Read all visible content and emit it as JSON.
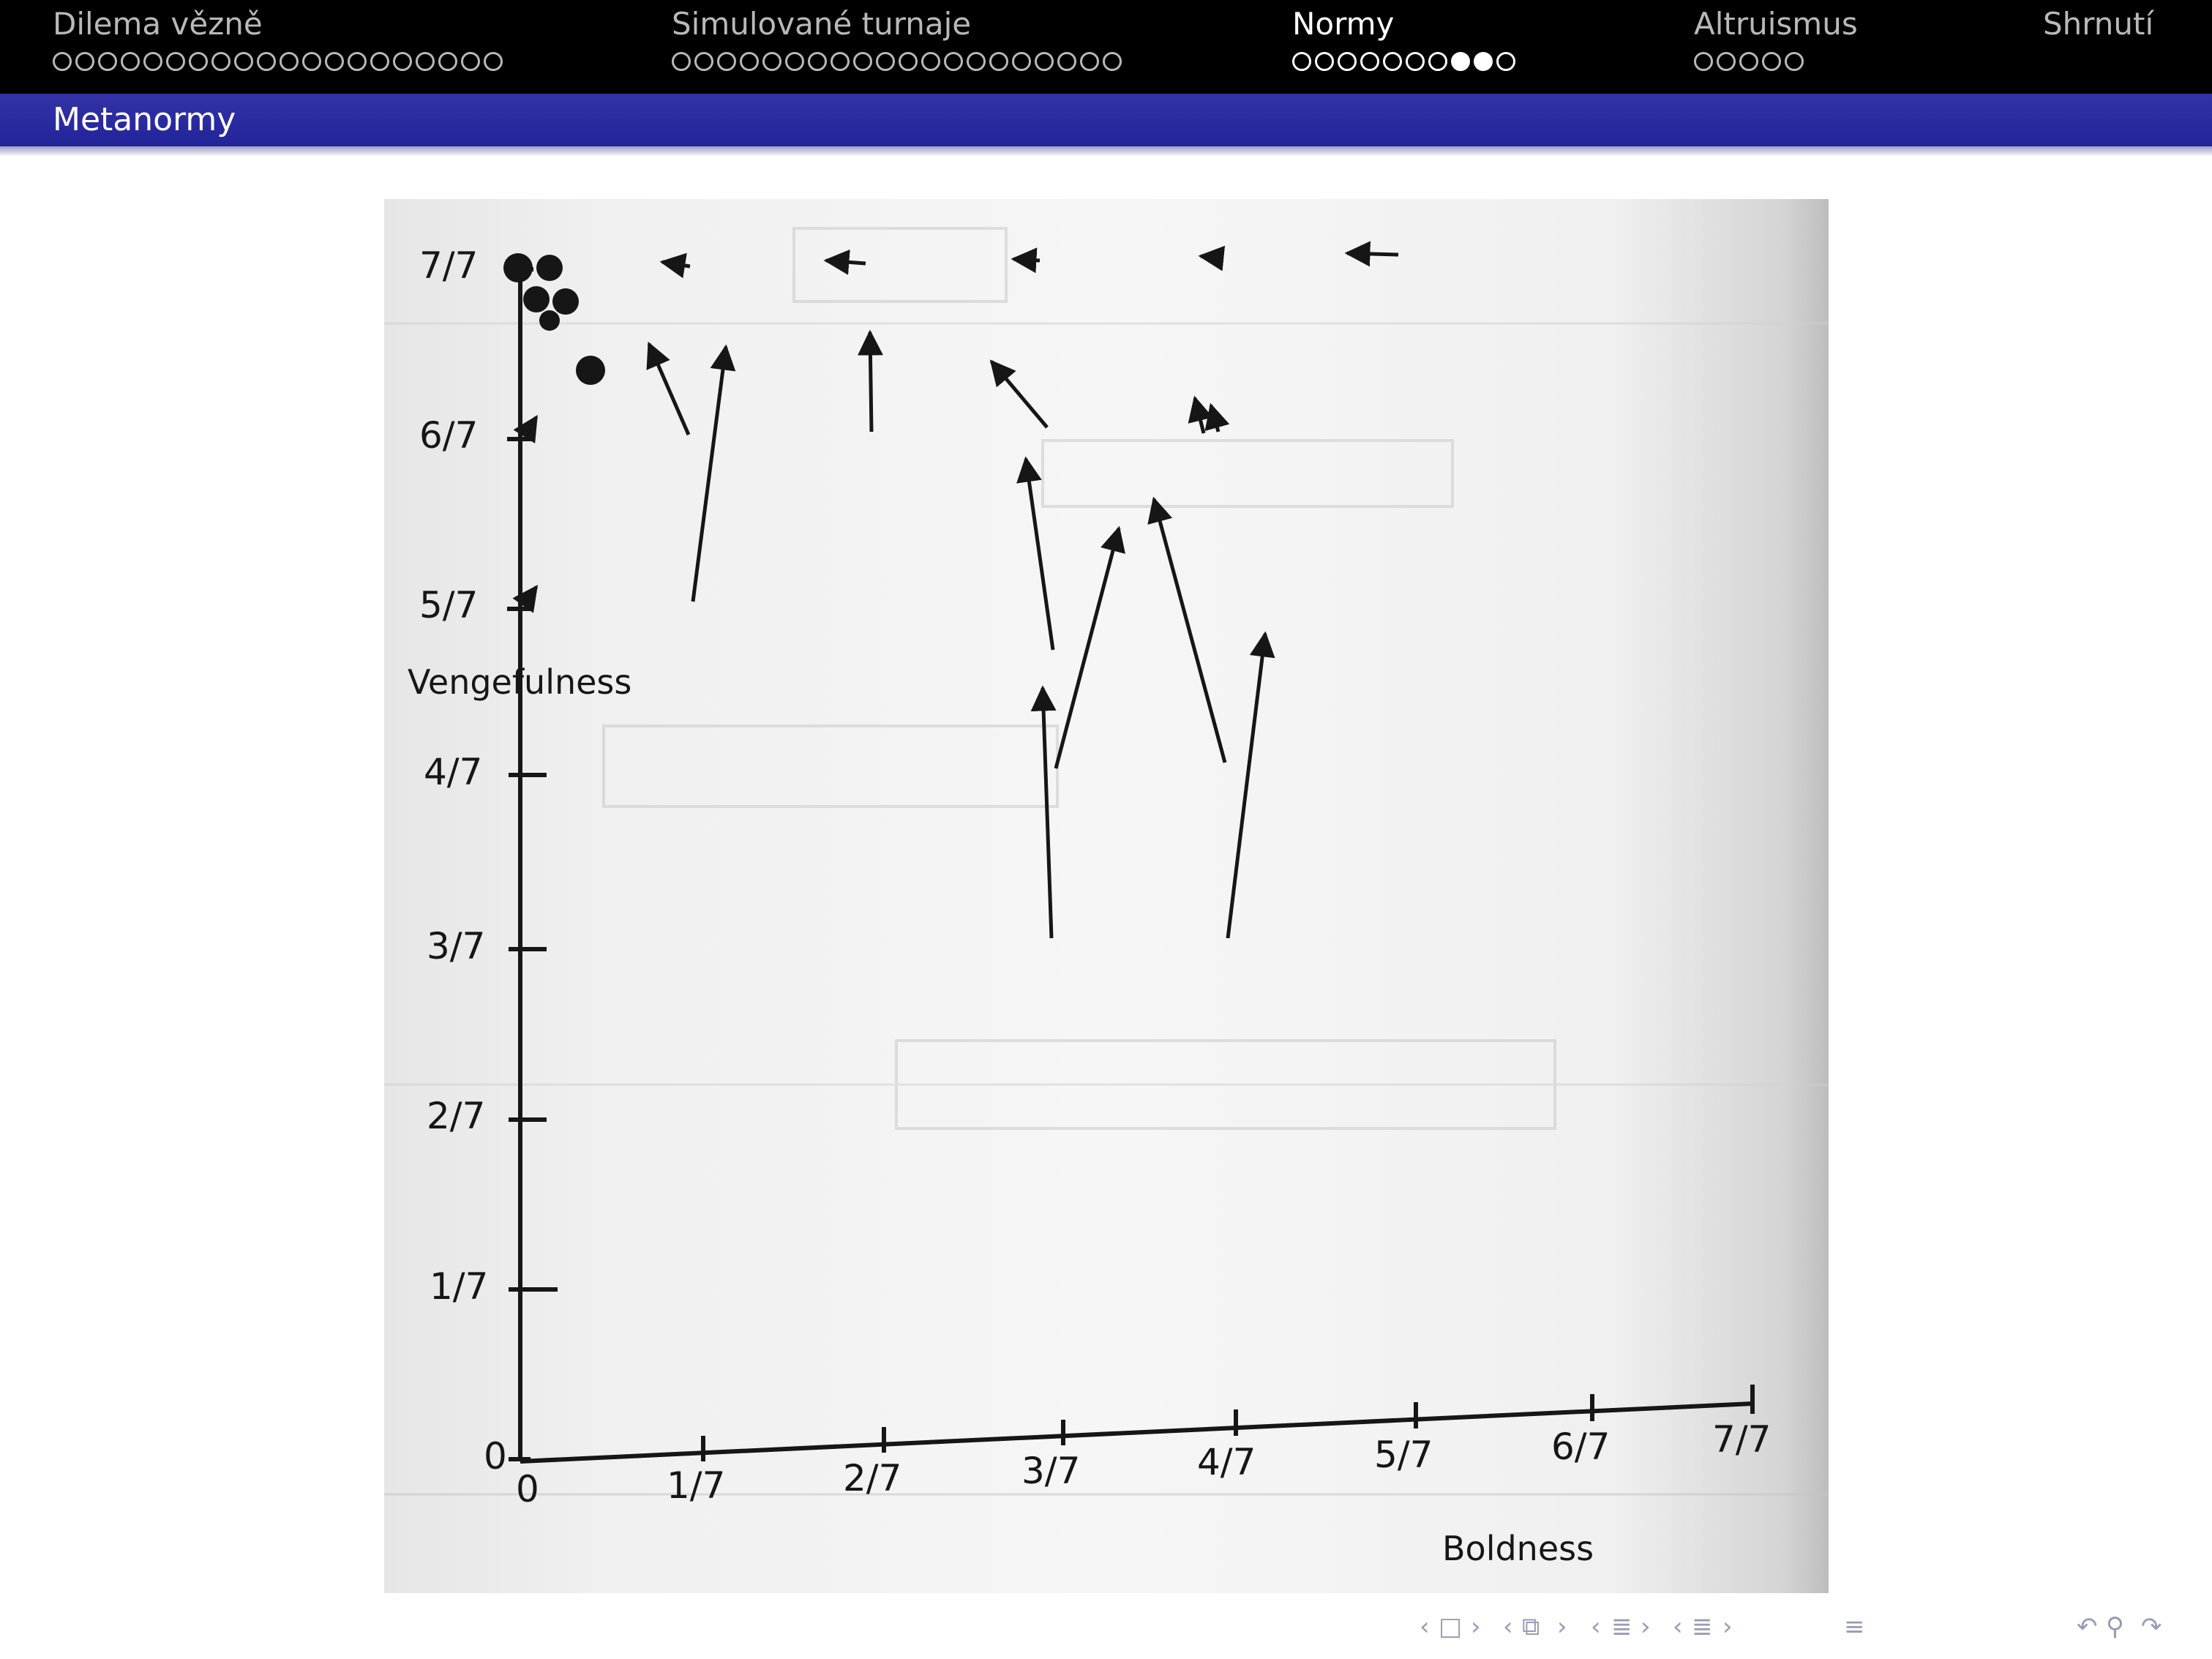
{
  "header": {
    "sections": [
      {
        "title": "Dilema vězně",
        "dots": 20,
        "filled": []
      },
      {
        "title": "Simulované turnaje",
        "dots": 20,
        "filled": []
      },
      {
        "title": "Normy",
        "dots": 10,
        "filled": [
          7,
          8
        ]
      },
      {
        "title": "Altruismus",
        "dots": 5,
        "filled": []
      },
      {
        "title": "Shrnutí",
        "dots": 0,
        "filled": []
      }
    ],
    "active_section": 2
  },
  "subheader": {
    "title": "Metanormy"
  },
  "figure": {
    "y_axis_label": "Vengefulness",
    "x_axis_label": "Boldness",
    "y_ticks": [
      "7/7",
      "6/7",
      "5/7",
      "4/7",
      "3/7",
      "2/7",
      "1/7",
      "0"
    ],
    "x_ticks": [
      "0",
      "1/7",
      "2/7",
      "3/7",
      "4/7",
      "5/7",
      "6/7",
      "7/7"
    ],
    "colors": {
      "ink": "#161616",
      "faint_text": "#b9b9b9"
    }
  },
  "nav": {
    "icons": [
      "nav-arrow-left-icon",
      "nav-frame-icon",
      "nav-arrow-right-icon",
      "nav-arrow-left-icon",
      "nav-subsection-icon",
      "nav-arrow-right-icon",
      "nav-arrow-left-icon",
      "nav-section-icon",
      "nav-arrow-right-icon",
      "nav-arrow-left-icon",
      "nav-document-icon",
      "nav-arrow-right-icon",
      "nav-toc-icon",
      "nav-undo-icon",
      "nav-search-icon",
      "nav-redo-icon"
    ]
  }
}
